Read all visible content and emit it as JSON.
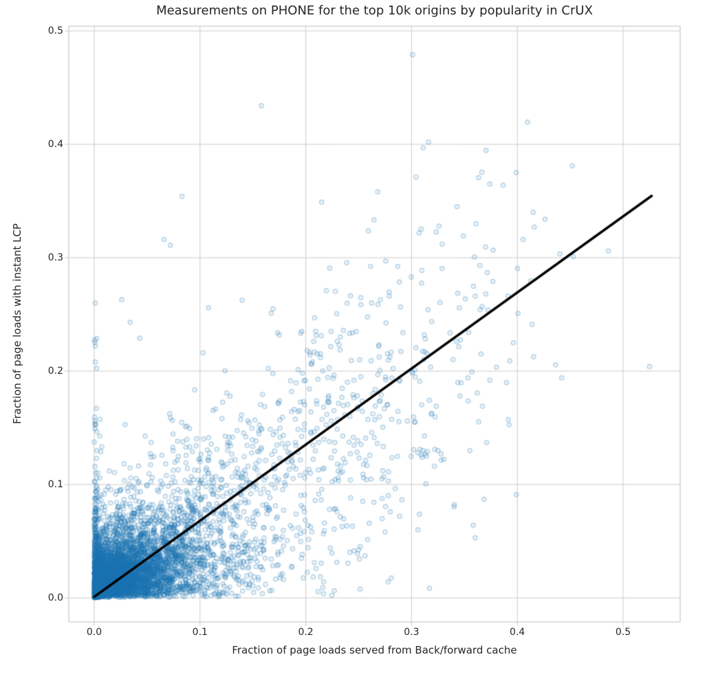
{
  "chart_data": {
    "type": "scatter",
    "title": "Measurements on PHONE for the top 10k origins by popularity in CrUX",
    "xlabel": "Fraction of page loads served from Back/forward cache",
    "ylabel": "Fraction of page loads with instant LCP",
    "xlim": [
      -0.02406,
      0.55397
    ],
    "ylim": [
      -0.02121,
      0.50424
    ],
    "grid": true,
    "legend": null,
    "x_ticks": {
      "values": [
        0.0,
        0.1,
        0.2,
        0.3,
        0.4,
        0.5
      ],
      "labels": [
        "0.0",
        "0.1",
        "0.2",
        "0.3",
        "0.4",
        "0.5"
      ]
    },
    "y_ticks": {
      "values": [
        0.0,
        0.1,
        0.2,
        0.3,
        0.4,
        0.5
      ],
      "labels": [
        "0.0",
        "0.1",
        "0.2",
        "0.3",
        "0.4",
        "0.5"
      ]
    },
    "style": {
      "background": "#ffffff",
      "grid_color": "#cccccc",
      "spine_color": "#cccccc",
      "text_color": "#262626",
      "marker_edge": "rgba(31,119,180,0.32)",
      "marker_face": "rgba(31,119,180,0.10)",
      "marker_radius": 3.2,
      "marker_edge_width": 1.2
    },
    "regression_line": {
      "x1": 0.0,
      "y1": 0.001,
      "x2": 0.527,
      "y2": 0.3545,
      "color": "#000000",
      "width": 3.6
    },
    "scatter": {
      "seed": 7,
      "total_points_depicted": 10000,
      "density_clusters": [
        {
          "name": "origin-core-wedge",
          "type": "exp_wedge",
          "n": 3800,
          "x_scale": 0.028,
          "x_max": 0.24,
          "slope": 0.65,
          "frac_pow": 1.1,
          "tail_scale": 0.016
        },
        {
          "name": "bottom-band",
          "type": "exp_wedge",
          "n": 700,
          "x_scale": 0.07,
          "x_max": 0.3,
          "slope": 0.3,
          "frac_pow": 1.0,
          "tail_scale": 0.012
        },
        {
          "name": "zero-x-strip",
          "type": "half_gauss_strip",
          "n": 240,
          "x_sigma": 0.0022,
          "y_scale": 0.05,
          "y_max": 0.27
        },
        {
          "name": "correlated-cloud",
          "type": "corr_cloud",
          "n": 1500,
          "x_min": 0.02,
          "x_span": 0.43,
          "slope": 0.66,
          "noise_base": 0.035,
          "noise_slope": 0.12,
          "y_min": 0.001,
          "y_max": 0.45
        }
      ],
      "outlier_points": [
        [
          0.301,
          0.479
        ],
        [
          0.158,
          0.434
        ],
        [
          0.316,
          0.402
        ],
        [
          0.311,
          0.397
        ],
        [
          0.452,
          0.381
        ],
        [
          0.399,
          0.375
        ],
        [
          0.374,
          0.365
        ],
        [
          0.268,
          0.358
        ],
        [
          0.083,
          0.354
        ],
        [
          0.215,
          0.349
        ],
        [
          0.343,
          0.345
        ],
        [
          0.361,
          0.33
        ],
        [
          0.416,
          0.327
        ],
        [
          0.066,
          0.316
        ],
        [
          0.072,
          0.311
        ],
        [
          0.329,
          0.312
        ],
        [
          0.486,
          0.306
        ],
        [
          0.453,
          0.301
        ],
        [
          0.026,
          0.263
        ],
        [
          0.001,
          0.26
        ],
        [
          0.034,
          0.243
        ],
        [
          0.043,
          0.229
        ],
        [
          0.393,
          0.209
        ],
        [
          0.001,
          0.208
        ],
        [
          0.525,
          0.204
        ],
        [
          0.442,
          0.194
        ],
        [
          0.374,
          0.192
        ],
        [
          0.296,
          0.156
        ],
        [
          0.303,
          0.155
        ],
        [
          0.371,
          0.137
        ],
        [
          0.399,
          0.091
        ],
        [
          0.306,
          0.06
        ],
        [
          0.306,
          0.128
        ],
        [
          0.309,
          0.126
        ],
        [
          0.311,
          0.13
        ],
        [
          0.313,
          0.127
        ],
        [
          0.315,
          0.129
        ],
        [
          0.31,
          0.124
        ],
        [
          0.308,
          0.131
        ],
        [
          0.314,
          0.125
        ],
        [
          0.322,
          0.131
        ],
        [
          0.325,
          0.13
        ]
      ]
    }
  }
}
